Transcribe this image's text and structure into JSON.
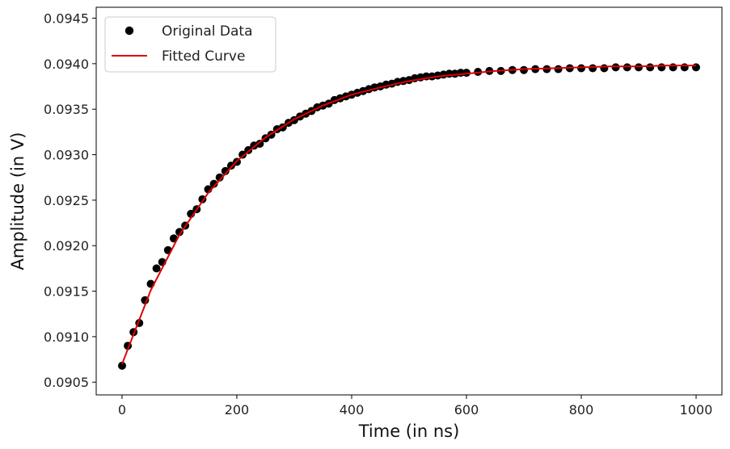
{
  "chart_data": {
    "type": "scatter",
    "xlabel": "Time (in ns)",
    "ylabel": "Amplitude (in V)",
    "xlim": [
      -45,
      1045
    ],
    "ylim": [
      0.09036,
      0.09462
    ],
    "x_ticks": [
      0,
      200,
      400,
      600,
      800,
      1000
    ],
    "x_tick_labels": [
      "0",
      "200",
      "400",
      "600",
      "800",
      "1000"
    ],
    "y_ticks": [
      0.0905,
      0.091,
      0.0915,
      0.092,
      0.0925,
      0.093,
      0.0935,
      0.094,
      0.0945
    ],
    "y_tick_labels": [
      "0.0905",
      "0.0910",
      "0.0915",
      "0.0920",
      "0.0925",
      "0.0930",
      "0.0935",
      "0.0940",
      "0.0945"
    ],
    "grid": false,
    "legend_position": "top-left",
    "series": [
      {
        "name": "Original Data",
        "kind": "scatter",
        "color": "#000000",
        "points": [
          [
            0,
            0.09068
          ],
          [
            10,
            0.0909
          ],
          [
            20,
            0.09105
          ],
          [
            30,
            0.09115
          ],
          [
            40,
            0.0914
          ],
          [
            50,
            0.09158
          ],
          [
            60,
            0.09175
          ],
          [
            70,
            0.09182
          ],
          [
            80,
            0.09195
          ],
          [
            90,
            0.09208
          ],
          [
            100,
            0.09215
          ],
          [
            110,
            0.09222
          ],
          [
            120,
            0.09235
          ],
          [
            130,
            0.0924
          ],
          [
            140,
            0.09251
          ],
          [
            150,
            0.09262
          ],
          [
            160,
            0.09268
          ],
          [
            170,
            0.09275
          ],
          [
            180,
            0.09282
          ],
          [
            190,
            0.09288
          ],
          [
            200,
            0.09292
          ],
          [
            210,
            0.093
          ],
          [
            220,
            0.09305
          ],
          [
            230,
            0.0931
          ],
          [
            240,
            0.09312
          ],
          [
            250,
            0.09318
          ],
          [
            260,
            0.09322
          ],
          [
            270,
            0.09328
          ],
          [
            280,
            0.0933
          ],
          [
            290,
            0.09335
          ],
          [
            300,
            0.09338
          ],
          [
            310,
            0.09342
          ],
          [
            320,
            0.09345
          ],
          [
            330,
            0.09348
          ],
          [
            340,
            0.09352
          ],
          [
            350,
            0.09354
          ],
          [
            360,
            0.09356
          ],
          [
            370,
            0.0936
          ],
          [
            380,
            0.09362
          ],
          [
            390,
            0.09364
          ],
          [
            400,
            0.09366
          ],
          [
            410,
            0.09368
          ],
          [
            420,
            0.0937
          ],
          [
            430,
            0.09372
          ],
          [
            440,
            0.09374
          ],
          [
            450,
            0.09375
          ],
          [
            460,
            0.09377
          ],
          [
            470,
            0.09378
          ],
          [
            480,
            0.0938
          ],
          [
            490,
            0.09381
          ],
          [
            500,
            0.09382
          ],
          [
            510,
            0.09384
          ],
          [
            520,
            0.09385
          ],
          [
            530,
            0.09386
          ],
          [
            540,
            0.09386
          ],
          [
            550,
            0.09387
          ],
          [
            560,
            0.09388
          ],
          [
            570,
            0.09389
          ],
          [
            580,
            0.09389
          ],
          [
            590,
            0.0939
          ],
          [
            600,
            0.0939
          ],
          [
            620,
            0.09391
          ],
          [
            640,
            0.09392
          ],
          [
            660,
            0.09392
          ],
          [
            680,
            0.09393
          ],
          [
            700,
            0.09393
          ],
          [
            720,
            0.09394
          ],
          [
            740,
            0.09394
          ],
          [
            760,
            0.09394
          ],
          [
            780,
            0.09395
          ],
          [
            800,
            0.09395
          ],
          [
            820,
            0.09395
          ],
          [
            840,
            0.09395
          ],
          [
            860,
            0.09396
          ],
          [
            880,
            0.09396
          ],
          [
            900,
            0.09396
          ],
          [
            920,
            0.09396
          ],
          [
            940,
            0.09396
          ],
          [
            960,
            0.09396
          ],
          [
            980,
            0.09396
          ],
          [
            1000,
            0.09396
          ]
        ]
      },
      {
        "name": "Fitted Curve",
        "kind": "line",
        "color": "#e00000",
        "points": [
          [
            0,
            0.0907
          ],
          [
            50,
            0.09151
          ],
          [
            100,
            0.09212
          ],
          [
            150,
            0.09258
          ],
          [
            200,
            0.09293
          ],
          [
            250,
            0.09319
          ],
          [
            300,
            0.09339
          ],
          [
            350,
            0.09354
          ],
          [
            400,
            0.09366
          ],
          [
            450,
            0.09374
          ],
          [
            500,
            0.09381
          ],
          [
            550,
            0.09386
          ],
          [
            600,
            0.09389
          ],
          [
            650,
            0.09392
          ],
          [
            700,
            0.09394
          ],
          [
            750,
            0.09395
          ],
          [
            800,
            0.09396
          ],
          [
            850,
            0.09397
          ],
          [
            900,
            0.09397
          ],
          [
            950,
            0.09398
          ],
          [
            1000,
            0.09398
          ]
        ]
      }
    ]
  }
}
